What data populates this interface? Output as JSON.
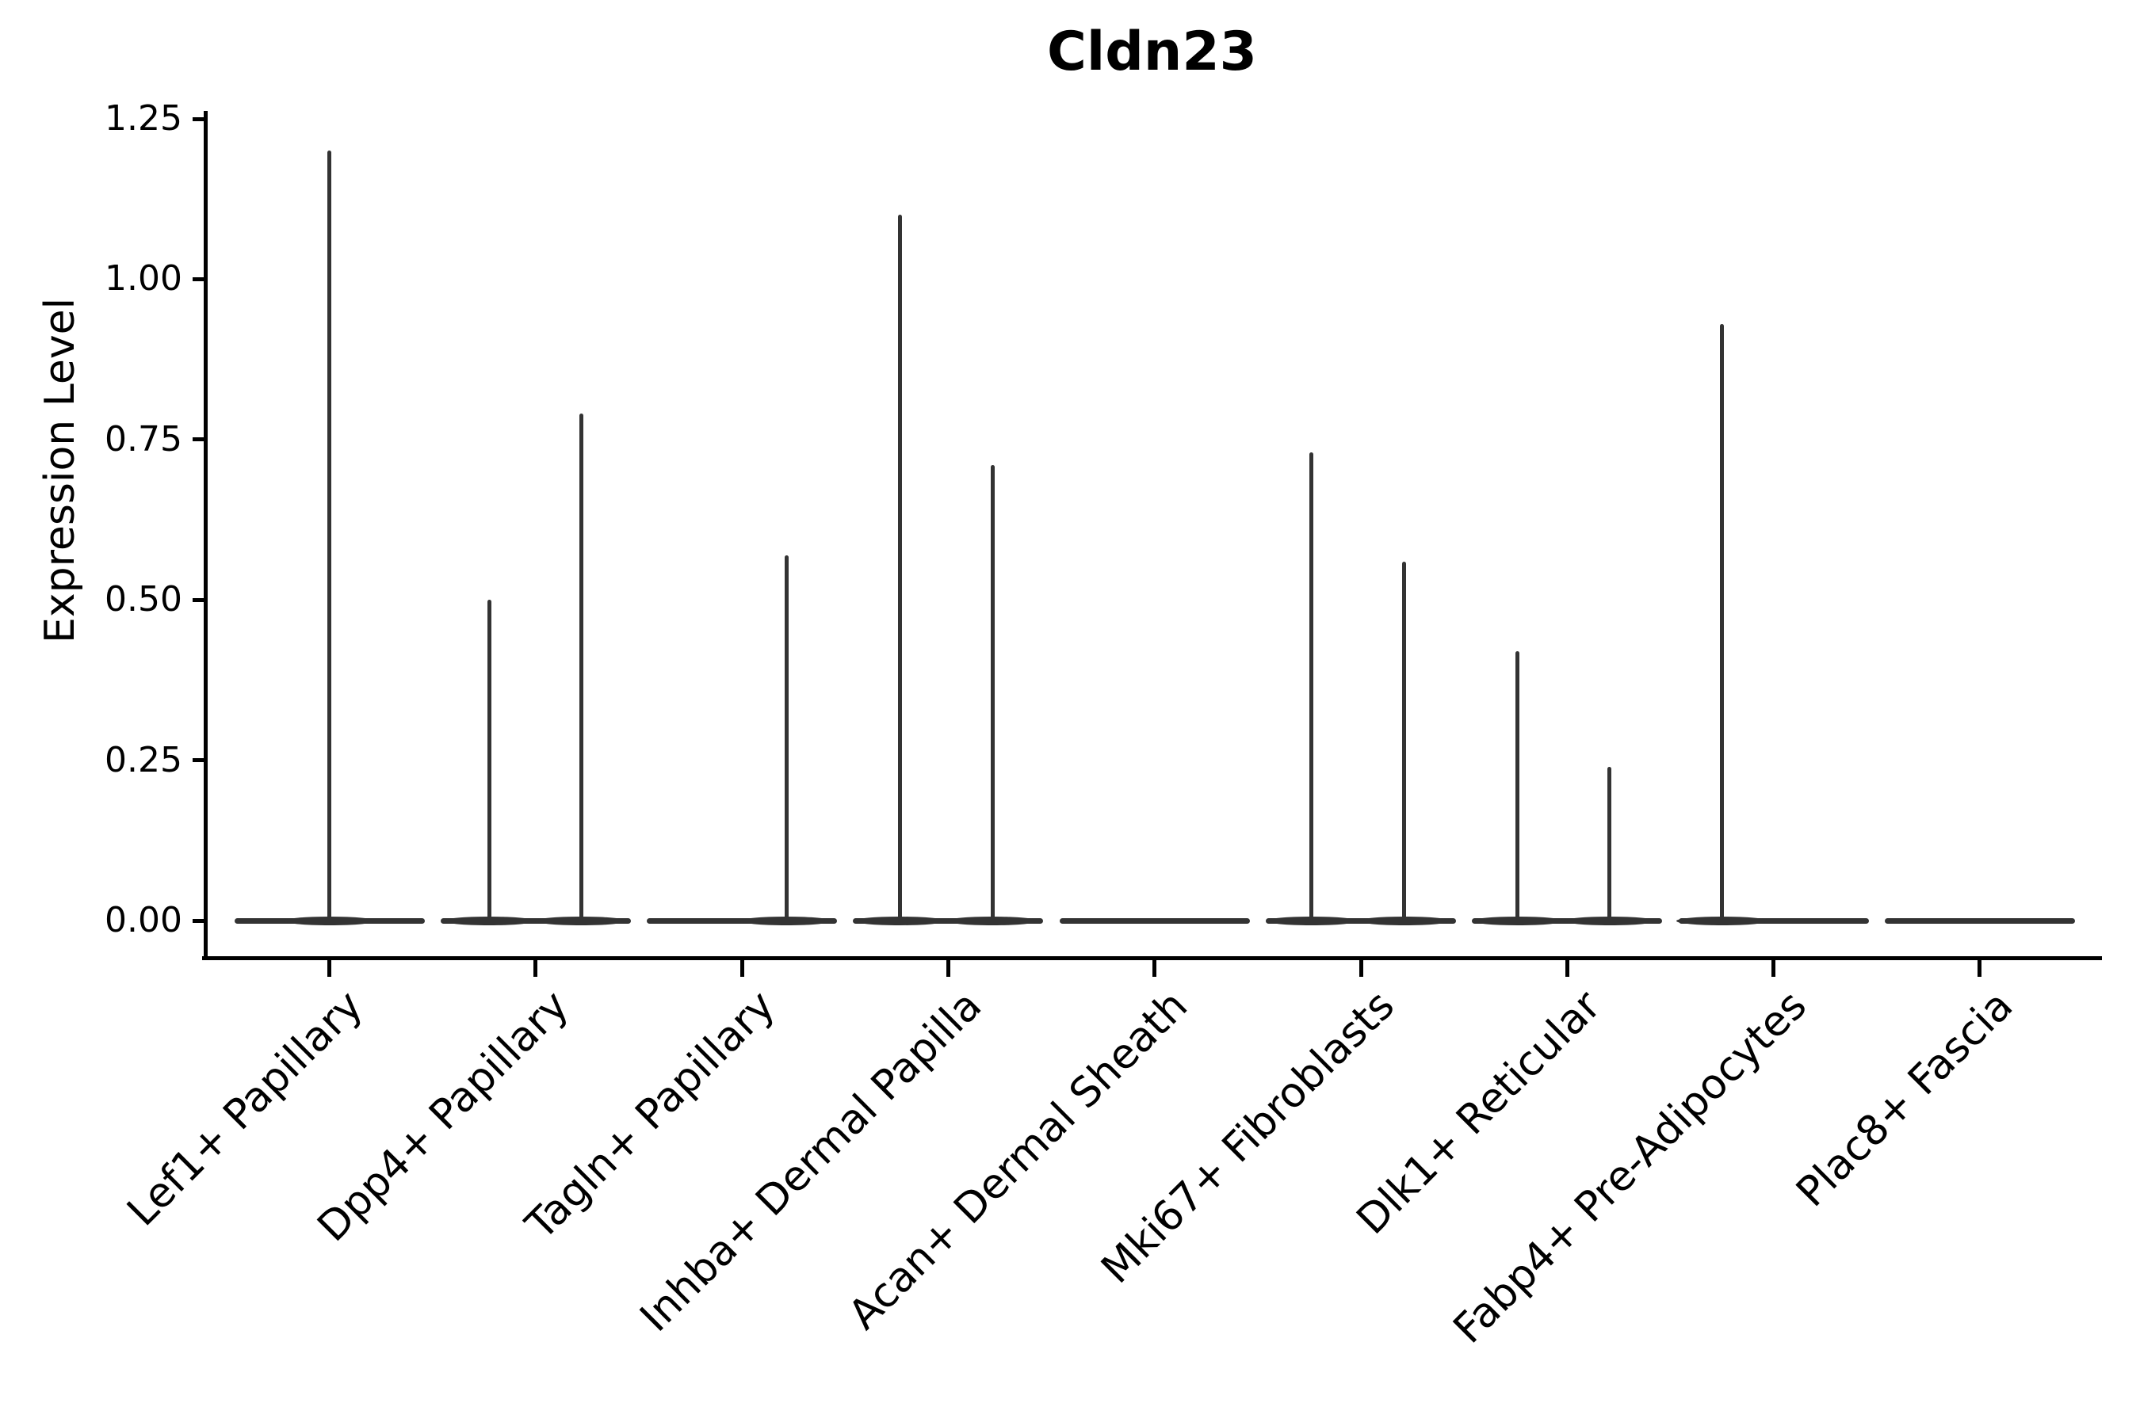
{
  "chart_data": {
    "type": "violin",
    "title": "Cldn23",
    "ylabel": "Expression Level",
    "xlabel": "",
    "yticks": [
      0.0,
      0.25,
      0.5,
      0.75,
      1.0,
      1.25
    ],
    "ytick_labels": [
      "0.00",
      "0.25",
      "0.50",
      "0.75",
      "1.00",
      "1.25"
    ],
    "ylim": [
      -0.06,
      1.26
    ],
    "grid": false,
    "legend": "none",
    "categories": [
      "Lef1+ Papillary",
      "Dpp4+ Papillary",
      "Tagln+ Papillary",
      "Inhba+ Dermal Papilla",
      "Acan+ Dermal Sheath",
      "Mki67+ Fibroblasts",
      "Dlk1+ Reticular",
      "Fabp4+ Pre-Adipocytes",
      "Plac8+ Fascia"
    ],
    "violins": [
      {
        "category": "Lef1+ Papillary",
        "base_at": 0.0,
        "spikes": [
          {
            "offset": 0.0,
            "max": 1.2
          }
        ]
      },
      {
        "category": "Dpp4+ Papillary",
        "base_at": 0.0,
        "spikes": [
          {
            "offset": -0.225,
            "max": 0.5
          },
          {
            "offset": 0.22,
            "max": 0.79
          }
        ]
      },
      {
        "category": "Tagln+ Papillary",
        "base_at": 0.0,
        "spikes": [
          {
            "offset": 0.215,
            "max": 0.57
          }
        ]
      },
      {
        "category": "Inhba+ Dermal Papilla",
        "base_at": 0.0,
        "spikes": [
          {
            "offset": -0.235,
            "max": 1.1
          },
          {
            "offset": 0.215,
            "max": 0.71
          }
        ]
      },
      {
        "category": "Acan+ Dermal Sheath",
        "base_at": 0.0,
        "spikes": []
      },
      {
        "category": "Mki67+ Fibroblasts",
        "base_at": 0.0,
        "spikes": [
          {
            "offset": -0.24,
            "max": 0.73
          },
          {
            "offset": 0.21,
            "max": 0.56
          }
        ]
      },
      {
        "category": "Dlk1+ Reticular",
        "base_at": 0.0,
        "spikes": [
          {
            "offset": -0.24,
            "max": 0.42
          },
          {
            "offset": 0.205,
            "max": 0.24
          }
        ]
      },
      {
        "category": "Fabp4+ Pre-Adipocytes",
        "base_at": 0.0,
        "spikes": [
          {
            "offset": -0.25,
            "max": 0.93
          }
        ]
      },
      {
        "category": "Plac8+ Fascia",
        "base_at": 0.0,
        "spikes": []
      }
    ],
    "colors": {
      "violin": "#333333",
      "axis": "#000000",
      "text": "#000000",
      "background": "#ffffff"
    }
  }
}
